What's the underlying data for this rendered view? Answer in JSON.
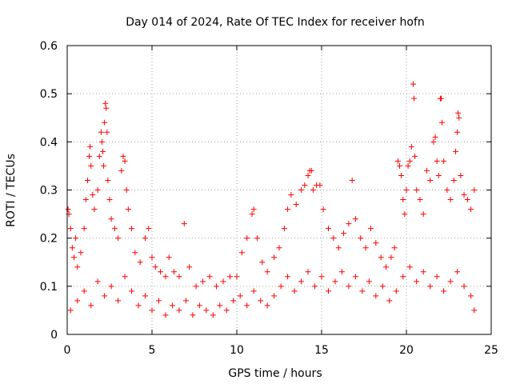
{
  "chart_data": {
    "type": "scatter",
    "title": "Day 014 of 2024, Rate Of TEC Index for receiver hofn",
    "xlabel": "GPS time / hours",
    "ylabel": "ROTI / TECUs",
    "xlim": [
      0,
      25
    ],
    "ylim": [
      0,
      0.6
    ],
    "xticks": [
      0,
      5,
      10,
      15,
      20,
      25
    ],
    "xtick_labels": [
      "0",
      "5",
      "10",
      "15",
      "20",
      "25"
    ],
    "yticks": [
      0,
      0.1,
      0.2,
      0.3,
      0.4,
      0.5,
      0.6
    ],
    "ytick_labels": [
      "0",
      "0.1",
      "0.2",
      "0.3",
      "0.4",
      "0.5",
      "0.6"
    ],
    "grid": true,
    "marker": "+",
    "color": "#ff0000",
    "series": [
      {
        "name": "ROTI",
        "points": [
          [
            0.05,
            0.26
          ],
          [
            0.1,
            0.25
          ],
          [
            0.2,
            0.22
          ],
          [
            0.3,
            0.18
          ],
          [
            0.4,
            0.16
          ],
          [
            0.5,
            0.2
          ],
          [
            0.6,
            0.14
          ],
          [
            0.8,
            0.17
          ],
          [
            1.0,
            0.22
          ],
          [
            1.1,
            0.28
          ],
          [
            1.2,
            0.32
          ],
          [
            1.3,
            0.37
          ],
          [
            1.35,
            0.39
          ],
          [
            1.4,
            0.35
          ],
          [
            1.5,
            0.29
          ],
          [
            1.6,
            0.26
          ],
          [
            1.8,
            0.3
          ],
          [
            1.9,
            0.37
          ],
          [
            2.0,
            0.42
          ],
          [
            2.05,
            0.4
          ],
          [
            2.1,
            0.38
          ],
          [
            2.15,
            0.35
          ],
          [
            2.2,
            0.44
          ],
          [
            2.25,
            0.48
          ],
          [
            2.3,
            0.47
          ],
          [
            2.35,
            0.42
          ],
          [
            2.4,
            0.32
          ],
          [
            2.5,
            0.28
          ],
          [
            2.6,
            0.24
          ],
          [
            2.8,
            0.22
          ],
          [
            3.0,
            0.2
          ],
          [
            3.2,
            0.34
          ],
          [
            3.3,
            0.37
          ],
          [
            3.4,
            0.36
          ],
          [
            3.5,
            0.3
          ],
          [
            3.6,
            0.26
          ],
          [
            3.8,
            0.22
          ],
          [
            4.0,
            0.17
          ],
          [
            4.3,
            0.15
          ],
          [
            4.6,
            0.2
          ],
          [
            4.8,
            0.22
          ],
          [
            5.0,
            0.16
          ],
          [
            5.2,
            0.14
          ],
          [
            5.5,
            0.13
          ],
          [
            5.8,
            0.12
          ],
          [
            6.0,
            0.16
          ],
          [
            6.3,
            0.13
          ],
          [
            6.6,
            0.12
          ],
          [
            6.9,
            0.23
          ],
          [
            7.2,
            0.14
          ],
          [
            7.6,
            0.1
          ],
          [
            8.0,
            0.11
          ],
          [
            8.4,
            0.12
          ],
          [
            8.8,
            0.1
          ],
          [
            9.2,
            0.11
          ],
          [
            9.6,
            0.12
          ],
          [
            10.0,
            0.12
          ],
          [
            10.3,
            0.17
          ],
          [
            10.6,
            0.2
          ],
          [
            10.9,
            0.25
          ],
          [
            11.0,
            0.26
          ],
          [
            11.2,
            0.2
          ],
          [
            11.5,
            0.15
          ],
          [
            11.8,
            0.13
          ],
          [
            12.2,
            0.16
          ],
          [
            12.5,
            0.18
          ],
          [
            12.8,
            0.22
          ],
          [
            13.0,
            0.26
          ],
          [
            13.2,
            0.29
          ],
          [
            13.5,
            0.27
          ],
          [
            13.8,
            0.3
          ],
          [
            14.0,
            0.31
          ],
          [
            14.2,
            0.33
          ],
          [
            14.3,
            0.34
          ],
          [
            14.4,
            0.34
          ],
          [
            14.5,
            0.3
          ],
          [
            14.7,
            0.31
          ],
          [
            14.9,
            0.31
          ],
          [
            15.1,
            0.26
          ],
          [
            15.4,
            0.22
          ],
          [
            15.7,
            0.2
          ],
          [
            16.0,
            0.18
          ],
          [
            16.3,
            0.21
          ],
          [
            16.6,
            0.23
          ],
          [
            16.8,
            0.32
          ],
          [
            17.0,
            0.24
          ],
          [
            17.3,
            0.2
          ],
          [
            17.6,
            0.18
          ],
          [
            17.9,
            0.22
          ],
          [
            18.2,
            0.19
          ],
          [
            18.5,
            0.16
          ],
          [
            18.8,
            0.14
          ],
          [
            19.1,
            0.16
          ],
          [
            19.3,
            0.18
          ],
          [
            19.5,
            0.36
          ],
          [
            19.6,
            0.35
          ],
          [
            19.7,
            0.33
          ],
          [
            19.8,
            0.28
          ],
          [
            19.9,
            0.25
          ],
          [
            20.0,
            0.3
          ],
          [
            20.1,
            0.35
          ],
          [
            20.2,
            0.36
          ],
          [
            20.3,
            0.39
          ],
          [
            20.4,
            0.52
          ],
          [
            20.45,
            0.49
          ],
          [
            20.5,
            0.37
          ],
          [
            20.6,
            0.3
          ],
          [
            20.8,
            0.28
          ],
          [
            21.0,
            0.25
          ],
          [
            21.2,
            0.34
          ],
          [
            21.4,
            0.32
          ],
          [
            21.6,
            0.4
          ],
          [
            21.7,
            0.41
          ],
          [
            21.8,
            0.36
          ],
          [
            21.9,
            0.33
          ],
          [
            22.0,
            0.49
          ],
          [
            22.05,
            0.49
          ],
          [
            22.1,
            0.44
          ],
          [
            22.2,
            0.36
          ],
          [
            22.4,
            0.3
          ],
          [
            22.6,
            0.28
          ],
          [
            22.8,
            0.32
          ],
          [
            22.9,
            0.38
          ],
          [
            23.0,
            0.42
          ],
          [
            23.05,
            0.46
          ],
          [
            23.1,
            0.45
          ],
          [
            23.2,
            0.33
          ],
          [
            23.4,
            0.29
          ],
          [
            23.6,
            0.28
          ],
          [
            23.8,
            0.26
          ],
          [
            24.0,
            0.3
          ],
          [
            0.2,
            0.05
          ],
          [
            0.6,
            0.07
          ],
          [
            1.0,
            0.09
          ],
          [
            1.4,
            0.06
          ],
          [
            1.8,
            0.11
          ],
          [
            2.2,
            0.08
          ],
          [
            2.6,
            0.1
          ],
          [
            3.0,
            0.07
          ],
          [
            3.4,
            0.12
          ],
          [
            3.8,
            0.09
          ],
          [
            4.2,
            0.06
          ],
          [
            4.6,
            0.08
          ],
          [
            5.0,
            0.05
          ],
          [
            5.4,
            0.07
          ],
          [
            5.8,
            0.04
          ],
          [
            6.2,
            0.06
          ],
          [
            6.6,
            0.05
          ],
          [
            7.0,
            0.07
          ],
          [
            7.4,
            0.04
          ],
          [
            7.8,
            0.06
          ],
          [
            8.2,
            0.05
          ],
          [
            8.6,
            0.04
          ],
          [
            9.0,
            0.06
          ],
          [
            9.4,
            0.05
          ],
          [
            9.8,
            0.07
          ],
          [
            10.2,
            0.08
          ],
          [
            10.6,
            0.06
          ],
          [
            11.0,
            0.09
          ],
          [
            11.4,
            0.07
          ],
          [
            11.8,
            0.06
          ],
          [
            12.2,
            0.08
          ],
          [
            12.6,
            0.1
          ],
          [
            13.0,
            0.12
          ],
          [
            13.4,
            0.09
          ],
          [
            13.8,
            0.11
          ],
          [
            14.2,
            0.13
          ],
          [
            14.6,
            0.1
          ],
          [
            15.0,
            0.12
          ],
          [
            15.4,
            0.09
          ],
          [
            15.8,
            0.11
          ],
          [
            16.2,
            0.13
          ],
          [
            16.6,
            0.1
          ],
          [
            17.0,
            0.12
          ],
          [
            17.4,
            0.09
          ],
          [
            17.8,
            0.11
          ],
          [
            18.2,
            0.08
          ],
          [
            18.6,
            0.1
          ],
          [
            19.0,
            0.07
          ],
          [
            19.4,
            0.09
          ],
          [
            19.8,
            0.12
          ],
          [
            20.2,
            0.14
          ],
          [
            20.6,
            0.11
          ],
          [
            21.0,
            0.13
          ],
          [
            21.4,
            0.1
          ],
          [
            21.8,
            0.12
          ],
          [
            22.2,
            0.09
          ],
          [
            22.6,
            0.11
          ],
          [
            23.0,
            0.13
          ],
          [
            23.4,
            0.1
          ],
          [
            23.8,
            0.08
          ],
          [
            24.0,
            0.05
          ]
        ]
      }
    ]
  }
}
